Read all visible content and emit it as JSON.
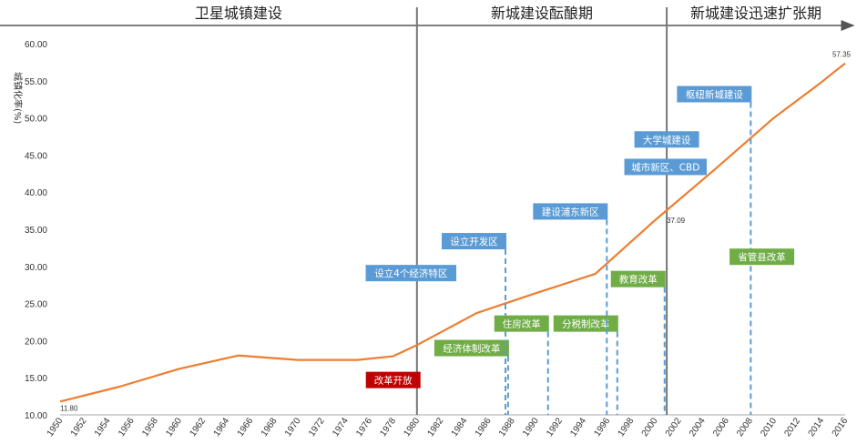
{
  "chart_data": {
    "type": "line",
    "ylabel": "城镇化率(%)",
    "ylim": [
      10,
      60
    ],
    "yticks": [
      "10.00",
      "15.00",
      "20.00",
      "25.00",
      "30.00",
      "35.00",
      "40.00",
      "45.00",
      "50.00",
      "55.00",
      "60.00"
    ],
    "xticks": [
      "1950",
      "1952",
      "1954",
      "1956",
      "1958",
      "1960",
      "1962",
      "1964",
      "1966",
      "1968",
      "1970",
      "1972",
      "1974",
      "1976",
      "1978",
      "1980",
      "1982",
      "1984",
      "1986",
      "1988",
      "1990",
      "1992",
      "1994",
      "1996",
      "1998",
      "2000",
      "2002",
      "2004",
      "2006",
      "2008",
      "2010",
      "2012",
      "2014",
      "2016"
    ],
    "xlim": [
      1950,
      2016
    ],
    "series": [
      {
        "color": "#ed7d31",
        "points": [
          [
            1950,
            11.8
          ],
          [
            1955,
            13.8
          ],
          [
            1960,
            16.2
          ],
          [
            1965,
            18.0
          ],
          [
            1970,
            17.4
          ],
          [
            1975,
            17.4
          ],
          [
            1978,
            17.9
          ],
          [
            1980,
            19.4
          ],
          [
            1985,
            23.7
          ],
          [
            1990,
            26.4
          ],
          [
            1995,
            29.0
          ],
          [
            2000,
            36.2
          ],
          [
            2005,
            43.0
          ],
          [
            2010,
            50.0
          ],
          [
            2014,
            54.8
          ],
          [
            2015,
            56.1
          ],
          [
            2016,
            57.35
          ]
        ]
      }
    ],
    "point_labels": [
      {
        "x": 1950,
        "y": 11.8,
        "text": "11.80"
      },
      {
        "x": 2001,
        "y": 37.09,
        "text": "37.09"
      },
      {
        "x": 2016,
        "y": 57.35,
        "text": "57.35"
      }
    ],
    "periods": [
      {
        "label": "卫星城镇建设",
        "from": 1950,
        "to": 1980
      },
      {
        "label": "新城建设酝酿期",
        "from": 1980,
        "to": 2001
      },
      {
        "label": "新城建设迅速扩张期",
        "from": 2001,
        "to": 2016
      }
    ],
    "dividers": [
      1980,
      2001
    ],
    "events": [
      {
        "text": "改革开放",
        "color": "#c00000",
        "x": 1978,
        "y": 14.7,
        "line": false
      },
      {
        "text": "经济体制改革",
        "color": "#70ad47",
        "x": 1984.6,
        "y": 19.0,
        "line": true
      },
      {
        "text": "设立4个经济特区",
        "color": "#5b9bd5",
        "x": 1979.5,
        "y": 29.1,
        "line": false
      },
      {
        "text": "设立开发区",
        "color": "#5b9bd5",
        "x": 1984.8,
        "y": 33.4,
        "line": true
      },
      {
        "text": "住房改革",
        "color": "#70ad47",
        "x": 1988.8,
        "y": 22.3,
        "line": true
      },
      {
        "text": "分税制改革",
        "color": "#70ad47",
        "x": 1994.2,
        "y": 22.3,
        "line": true
      },
      {
        "text": "建设浦东新区",
        "color": "#5b9bd5",
        "x": 1992.9,
        "y": 37.4,
        "line": true
      },
      {
        "text": "教育改革",
        "color": "#70ad47",
        "x": 1998.6,
        "y": 28.3,
        "line": true
      },
      {
        "text": "城市新区、CBD",
        "color": "#5b9bd5",
        "x": 2000.9,
        "y": 43.4,
        "line": false
      },
      {
        "text": "大学城建设",
        "color": "#5b9bd5",
        "x": 2001.0,
        "y": 47.1,
        "line": false
      },
      {
        "text": "枢纽新城建设",
        "color": "#5b9bd5",
        "x": 2005.0,
        "y": 53.2,
        "line": true
      },
      {
        "text": "省管县改革",
        "color": "#70ad47",
        "x": 2009.0,
        "y": 31.3,
        "line": false
      }
    ]
  }
}
